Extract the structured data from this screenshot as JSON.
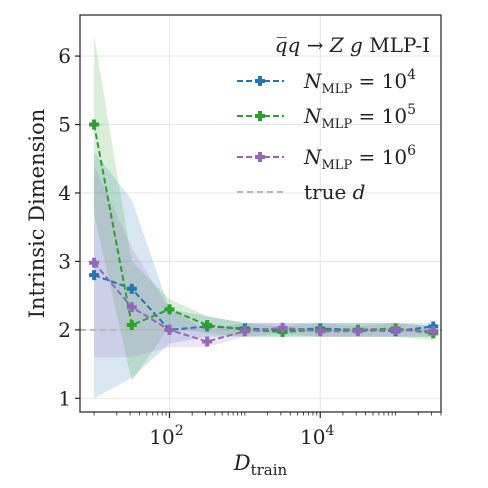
{
  "chart_data": {
    "type": "line",
    "legend_title": "q̅q → Z g  MLP-I",
    "legend_title_parts": {
      "process": "q̅q → Z g",
      "model": "MLP-I"
    },
    "xlabel": "D",
    "xlabel_sub": "train",
    "ylabel": "Intrinsic Dimension",
    "xscale": "log",
    "xlim": [
      6.5,
      400000
    ],
    "ylim": [
      0.8,
      6.6
    ],
    "x_ticks": [
      {
        "value": 100,
        "label": "10",
        "exp": "2"
      },
      {
        "value": 10000,
        "label": "10",
        "exp": "4"
      }
    ],
    "y_ticks": [
      1,
      2,
      3,
      4,
      5,
      6
    ],
    "grid": true,
    "legend_position": "top-right",
    "reference_line": {
      "name": "true d",
      "name_text": "true",
      "name_var": "d",
      "y": 2,
      "color": "#b8b8b8"
    },
    "series": [
      {
        "name": "N_MLP = 10^4",
        "legend_label": {
          "base": "N",
          "sub": "MLP",
          "eq": " = 10",
          "exp": "4"
        },
        "color": "#1f77b4",
        "x": [
          10,
          31.6,
          100,
          316,
          1000,
          3162,
          10000,
          31623,
          100000,
          316228
        ],
        "y": [
          2.8,
          2.6,
          2.0,
          2.05,
          2.02,
          2.0,
          2.02,
          2.0,
          1.98,
          2.05
        ],
        "lower": [
          1.0,
          1.3,
          1.8,
          1.9,
          1.9,
          1.9,
          1.9,
          1.9,
          1.9,
          1.9
        ],
        "upper": [
          4.6,
          3.9,
          2.3,
          2.2,
          2.1,
          2.1,
          2.1,
          2.1,
          2.1,
          2.1
        ]
      },
      {
        "name": "N_MLP = 10^5",
        "legend_label": {
          "base": "N",
          "sub": "MLP",
          "eq": " = 10",
          "exp": "5"
        },
        "color": "#2ca02c",
        "x": [
          10,
          31.6,
          100,
          316,
          1000,
          3162,
          10000,
          31623,
          100000,
          316228
        ],
        "y": [
          5.0,
          2.07,
          2.3,
          2.07,
          2.0,
          1.97,
          2.0,
          2.0,
          2.02,
          1.95
        ],
        "lower": [
          3.7,
          1.25,
          2.05,
          1.95,
          1.9,
          1.9,
          1.9,
          1.9,
          1.9,
          1.85
        ],
        "upper": [
          6.3,
          3.0,
          2.45,
          2.2,
          2.1,
          2.05,
          2.1,
          2.1,
          2.1,
          2.05
        ]
      },
      {
        "name": "N_MLP = 10^6",
        "legend_label": {
          "base": "N",
          "sub": "MLP",
          "eq": " = 10",
          "exp": "6"
        },
        "color": "#9467bd",
        "x": [
          10,
          31.6,
          100,
          316,
          1000,
          3162,
          10000,
          31623,
          100000,
          316228
        ],
        "y": [
          2.98,
          2.33,
          2.0,
          1.83,
          1.98,
          2.03,
          1.98,
          1.98,
          2.0,
          1.98
        ],
        "lower": [
          1.6,
          1.6,
          1.75,
          1.75,
          1.9,
          1.95,
          1.9,
          1.9,
          1.9,
          1.9
        ],
        "upper": [
          4.4,
          3.2,
          2.3,
          2.0,
          2.1,
          2.1,
          2.1,
          2.05,
          2.1,
          2.05
        ]
      }
    ]
  }
}
